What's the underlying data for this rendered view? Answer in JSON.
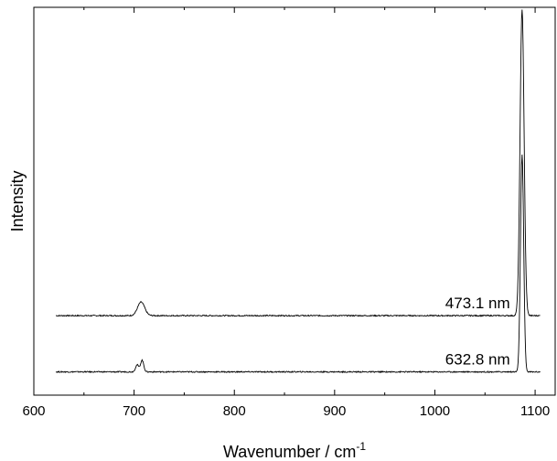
{
  "chart_data": {
    "type": "line",
    "xlabel": "Wavenumber / cm",
    "xlabel_superscript": "-1",
    "ylabel": "Intensity",
    "xlim": [
      600,
      1120
    ],
    "ylim": [
      0,
      1
    ],
    "x_ticks": [
      "600",
      "700",
      "800",
      "900",
      "1000",
      "1100"
    ],
    "y_ticks_labeled": false,
    "grid": false,
    "legend": "none",
    "series": [
      {
        "name": "473.1 nm",
        "color": "#000000",
        "x_range": [
          622,
          1105
        ],
        "baseline": 0.205,
        "peaks": [
          {
            "x": 707,
            "height": 0.035,
            "width": 3.5
          },
          {
            "x": 1087,
            "height": 0.79,
            "width": 2.0
          }
        ]
      },
      {
        "name": "632.8 nm",
        "color": "#000000",
        "x_range": [
          622,
          1105
        ],
        "baseline": 0.06,
        "peaks": [
          {
            "x": 703,
            "height": 0.018,
            "width": 1.6
          },
          {
            "x": 708,
            "height": 0.03,
            "width": 1.6
          },
          {
            "x": 1087,
            "height": 0.56,
            "width": 1.6
          }
        ]
      }
    ]
  }
}
